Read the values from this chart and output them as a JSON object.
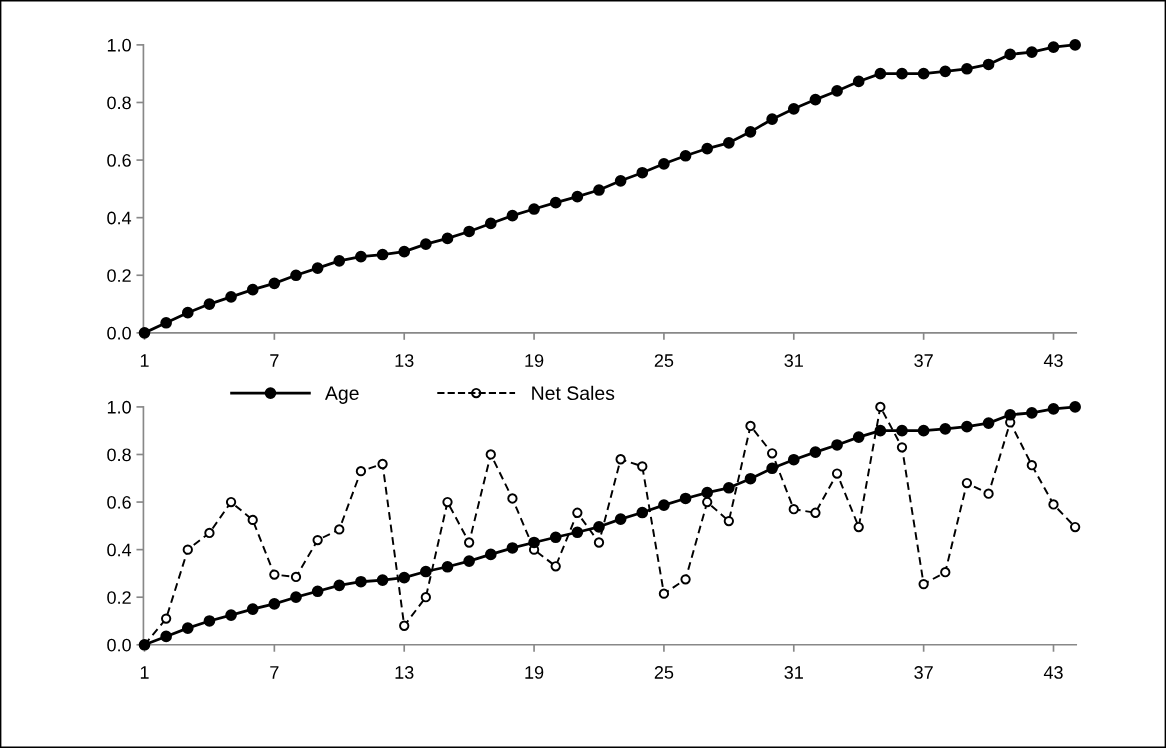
{
  "chart_data": [
    {
      "type": "line",
      "categories": [
        "1",
        null,
        null,
        null,
        null,
        null,
        "7",
        null,
        null,
        null,
        null,
        null,
        "13",
        null,
        null,
        null,
        null,
        null,
        "19",
        null,
        null,
        null,
        null,
        null,
        "25",
        null,
        null,
        null,
        null,
        null,
        "31",
        null,
        null,
        null,
        null,
        null,
        "37",
        null,
        null,
        null,
        null,
        null,
        "43",
        null
      ],
      "series": [
        {
          "color": "#000000",
          "marker": "circle",
          "line_style": "solid",
          "values": [
            0,
            0.035,
            0.07,
            0.1,
            0.125,
            0.15,
            0.172,
            0.2,
            0.225,
            0.25,
            0.265,
            0.272,
            0.282,
            0.308,
            0.328,
            0.352,
            0.38,
            0.407,
            0.43,
            0.452,
            0.473,
            0.496,
            0.528,
            0.556,
            0.587,
            0.615,
            0.64,
            0.66,
            0.698,
            0.742,
            0.778,
            0.81,
            0.84,
            0.873,
            0.9,
            0.9,
            0.9,
            0.908,
            0.917,
            0.932,
            0.967,
            0.975,
            0.992,
            1.0
          ]
        }
      ],
      "ylim": [
        0,
        1
      ],
      "yticks": [
        {
          "value": 0,
          "label": "0.0"
        },
        {
          "value": 0.2,
          "label": "0.2"
        },
        {
          "value": 0.4,
          "label": "0.4"
        },
        {
          "value": 0.6,
          "label": "0.6"
        },
        {
          "value": 0.8,
          "label": "0.8"
        },
        {
          "value": 1,
          "label": "1.0"
        }
      ],
      "grid": false,
      "legend": false
    },
    {
      "type": "line",
      "categories": [
        "1",
        null,
        null,
        null,
        null,
        null,
        "7",
        null,
        null,
        null,
        null,
        null,
        "13",
        null,
        null,
        null,
        null,
        null,
        "19",
        null,
        null,
        null,
        null,
        null,
        "25",
        null,
        null,
        null,
        null,
        null,
        "31",
        null,
        null,
        null,
        null,
        null,
        "37",
        null,
        null,
        null,
        null,
        null,
        "43",
        null
      ],
      "series": [
        {
          "name": "Age",
          "color": "#000000",
          "marker": "circle",
          "line_style": "solid",
          "values": [
            0,
            0.035,
            0.07,
            0.1,
            0.125,
            0.15,
            0.172,
            0.2,
            0.225,
            0.25,
            0.265,
            0.272,
            0.282,
            0.308,
            0.328,
            0.352,
            0.38,
            0.407,
            0.43,
            0.452,
            0.473,
            0.496,
            0.528,
            0.556,
            0.587,
            0.615,
            0.64,
            0.66,
            0.698,
            0.742,
            0.778,
            0.81,
            0.84,
            0.873,
            0.9,
            0.9,
            0.9,
            0.908,
            0.917,
            0.932,
            0.967,
            0.975,
            0.992,
            1.0
          ]
        },
        {
          "name": "Net Sales",
          "color": "#000000",
          "marker": "open circle",
          "line_style": "dashed",
          "values": [
            0,
            0.11,
            0.4,
            0.47,
            0.6,
            0.525,
            0.295,
            0.285,
            0.44,
            0.485,
            0.73,
            0.76,
            0.08,
            0.2,
            0.6,
            0.43,
            0.8,
            0.615,
            0.4,
            0.33,
            0.555,
            0.43,
            0.78,
            0.75,
            0.215,
            0.275,
            0.6,
            0.52,
            0.92,
            0.805,
            0.57,
            0.555,
            0.72,
            0.495,
            1.0,
            0.83,
            0.255,
            0.305,
            0.68,
            0.635,
            0.935,
            0.755,
            0.59,
            0.495
          ]
        }
      ],
      "ylim": [
        0,
        1
      ],
      "yticks": [
        {
          "value": 0,
          "label": "0.0"
        },
        {
          "value": 0.2,
          "label": "0.2"
        },
        {
          "value": 0.4,
          "label": "0.4"
        },
        {
          "value": 0.6,
          "label": "0.6"
        },
        {
          "value": 0.8,
          "label": "0.8"
        },
        {
          "value": 1,
          "label": "1.0"
        }
      ],
      "grid": false,
      "legend": "top"
    }
  ]
}
